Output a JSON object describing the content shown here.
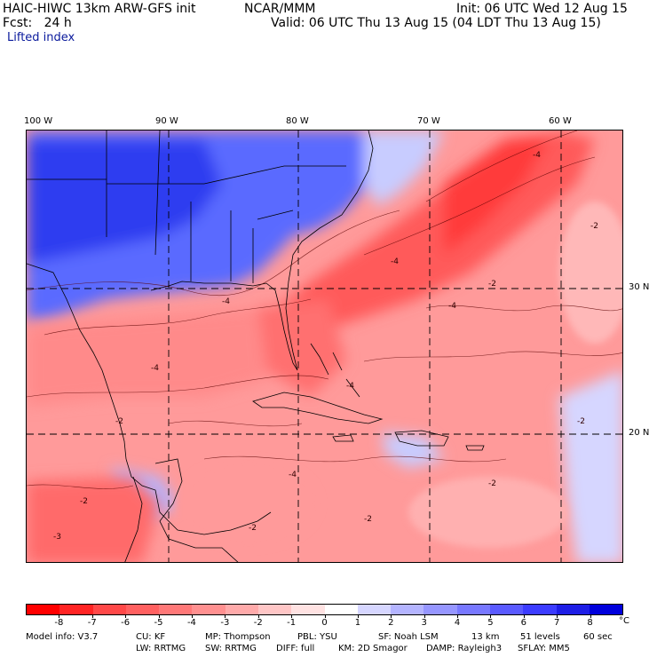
{
  "header": {
    "model_line": "HAIC-HIWC 13km ARW-GFS init",
    "org": "NCAR/MMM",
    "init": "Init: 06 UTC Wed 12 Aug 15",
    "fcst": "Fcst:   24 h",
    "valid": "Valid: 06 UTC Thu 13 Aug 15 (04 LDT Thu 13 Aug 15)",
    "field": "Lifted index"
  },
  "map": {
    "lon_labels": [
      "100 W",
      "90 W",
      "80 W",
      "70 W",
      "60 W"
    ],
    "lat_labels": [
      "30 N",
      "20 N"
    ],
    "contour_labels": [
      "-4",
      "-4",
      "-2",
      "-2",
      "-4",
      "-2",
      "-4",
      "-4",
      "-2",
      "-2",
      "-4",
      "-2",
      "-3",
      "-2",
      "-4",
      "-2"
    ]
  },
  "colorbar": {
    "colors": [
      "#ff0000",
      "#ff2424",
      "#ff4848",
      "#ff6060",
      "#ff7878",
      "#ff9090",
      "#ffaaaa",
      "#ffc6c6",
      "#ffe2e2",
      "#ffffff",
      "#d6d6ff",
      "#b4b4ff",
      "#9696ff",
      "#7878ff",
      "#5a5aff",
      "#3c3cff",
      "#1e1ee6",
      "#0000dc"
    ],
    "labels": [
      "-8",
      "-7",
      "-6",
      "-5",
      "-4",
      "-3",
      "-2",
      "-1",
      "0",
      "1",
      "2",
      "3",
      "4",
      "5",
      "6",
      "7",
      "8"
    ],
    "unit": "°C"
  },
  "footer": {
    "line1": [
      "Model info: V3.7",
      "CU: KF",
      "MP: Thompson",
      "PBL: YSU",
      "SF: Noah LSM",
      "13 km",
      "51 levels",
      "60 sec"
    ],
    "line2": [
      "LW: RRTMG",
      "SW: RRTMG",
      "DIFF: full",
      "KM: 2D Smagor",
      "DAMP: Rayleigh3",
      "SFLAY: MM5"
    ]
  }
}
